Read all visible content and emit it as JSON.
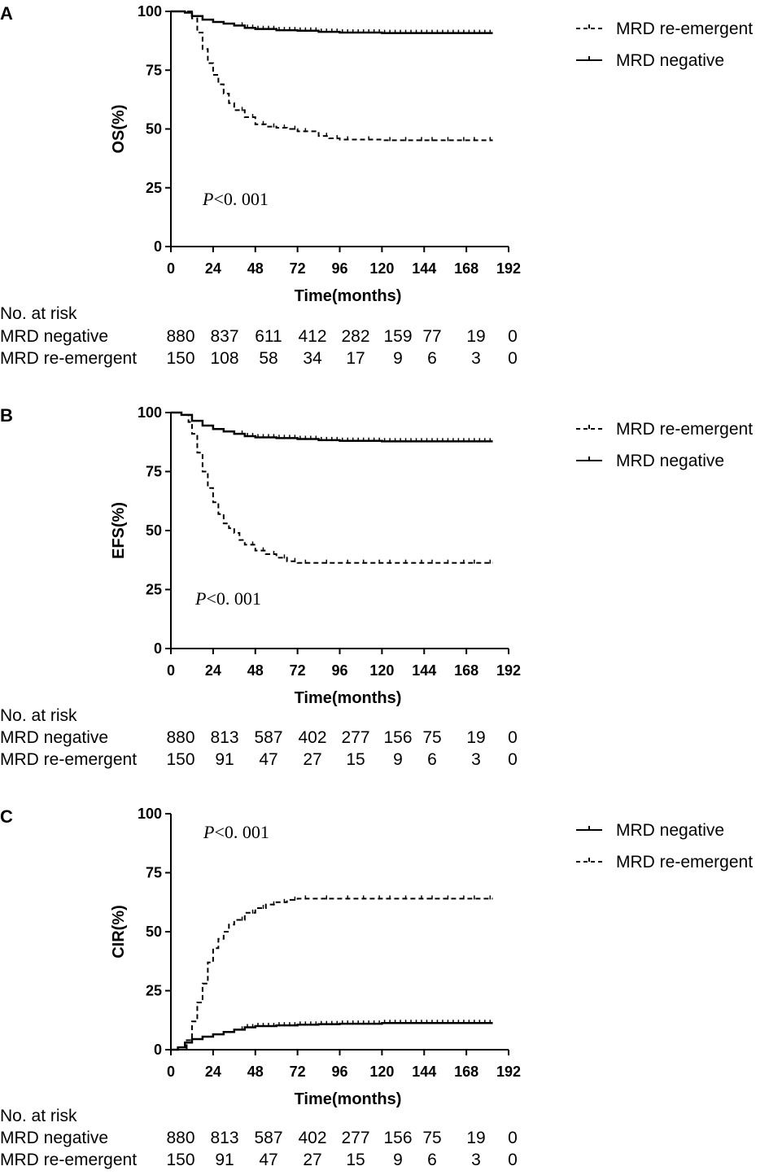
{
  "chart_data": [
    {
      "type": "line",
      "panel_label": "A",
      "ylabel": "OS(%)",
      "xlabel": "Time(months)",
      "xlim": [
        0,
        192
      ],
      "ylim": [
        0,
        100
      ],
      "x_ticks": [
        0,
        24,
        48,
        72,
        96,
        120,
        144,
        168,
        192
      ],
      "y_ticks": [
        0,
        25,
        50,
        75,
        100
      ],
      "p_value_prefix": "P",
      "p_value_text": "<0. 001",
      "legend_position": "top-right",
      "legend": [
        {
          "label": "MRD re-emergent",
          "style": "dashed"
        },
        {
          "label": "MRD negative",
          "style": "solid"
        }
      ],
      "series": [
        {
          "name": "MRD negative",
          "style": "solid",
          "x": [
            0,
            8,
            12,
            18,
            24,
            30,
            36,
            42,
            48,
            60,
            72,
            84,
            96,
            108,
            120,
            144,
            168,
            183
          ],
          "y": [
            100,
            99.5,
            98,
            96.5,
            95.5,
            94.8,
            94,
            93,
            92.5,
            92,
            91.8,
            91.3,
            91,
            91,
            90.8,
            90.8,
            90.8,
            90.8
          ]
        },
        {
          "name": "MRD re-emergent",
          "style": "dashed",
          "x": [
            0,
            8,
            12,
            15,
            18,
            21,
            24,
            27,
            30,
            33,
            36,
            42,
            48,
            54,
            60,
            66,
            72,
            84,
            90,
            96,
            108,
            120,
            144,
            168,
            183
          ],
          "y": [
            100,
            100,
            97,
            91,
            84,
            78,
            73,
            69,
            65,
            61,
            58,
            55,
            52,
            51,
            50.5,
            50,
            49,
            47,
            46,
            45.5,
            45.5,
            45.2,
            45.2,
            45.2,
            45.2
          ]
        }
      ],
      "risk_table": {
        "title": "No. at risk",
        "rows": [
          {
            "label": "MRD negative",
            "values": [
              "880",
              "837",
              "611",
              "412",
              "282",
              "159",
              "77",
              "19",
              "0"
            ]
          },
          {
            "label": "MRD re-emergent",
            "values": [
              "150",
              "108",
              "58",
              "34",
              "17",
              "9",
              "6",
              "3",
              "0"
            ]
          }
        ]
      }
    },
    {
      "type": "line",
      "panel_label": "B",
      "ylabel": "EFS(%)",
      "xlabel": "Time(months)",
      "xlim": [
        0,
        192
      ],
      "ylim": [
        0,
        100
      ],
      "x_ticks": [
        0,
        24,
        48,
        72,
        96,
        120,
        144,
        168,
        192
      ],
      "y_ticks": [
        0,
        25,
        50,
        75,
        100
      ],
      "p_value_prefix": "P",
      "p_value_text": "<0. 001",
      "legend_position": "top-right",
      "legend": [
        {
          "label": "MRD re-emergent",
          "style": "dashed"
        },
        {
          "label": "MRD negative",
          "style": "solid"
        }
      ],
      "series": [
        {
          "name": "MRD negative",
          "style": "solid",
          "x": [
            0,
            6,
            12,
            18,
            24,
            30,
            36,
            42,
            48,
            60,
            72,
            84,
            96,
            120,
            144,
            168,
            183
          ],
          "y": [
            100,
            99,
            96.5,
            94.5,
            93,
            92,
            91,
            90,
            89.5,
            89.2,
            88.8,
            88.3,
            88,
            87.8,
            87.8,
            87.8,
            87.8
          ]
        },
        {
          "name": "MRD re-emergent",
          "style": "dashed",
          "x": [
            0,
            6,
            10,
            12,
            15,
            18,
            21,
            24,
            27,
            30,
            33,
            36,
            39,
            42,
            48,
            54,
            60,
            66,
            72,
            84,
            96,
            120,
            144,
            168,
            183
          ],
          "y": [
            100,
            99,
            96,
            91,
            83,
            75,
            68,
            62,
            57,
            53,
            51,
            49,
            46,
            44,
            41.5,
            40,
            38.5,
            37,
            36.3,
            36.3,
            36.3,
            36.3,
            36.3,
            36.3,
            36.3
          ]
        }
      ],
      "risk_table": {
        "title": "No. at risk",
        "rows": [
          {
            "label": "MRD negative",
            "values": [
              "880",
              "813",
              "587",
              "402",
              "277",
              "156",
              "75",
              "19",
              "0"
            ]
          },
          {
            "label": "MRD re-emergent",
            "values": [
              "150",
              "91",
              "47",
              "27",
              "15",
              "9",
              "6",
              "3",
              "0"
            ]
          }
        ]
      }
    },
    {
      "type": "line",
      "panel_label": "C",
      "ylabel": "CIR(%)",
      "xlabel": "Time(months)",
      "xlim": [
        0,
        192
      ],
      "ylim": [
        0,
        100
      ],
      "x_ticks": [
        0,
        24,
        48,
        72,
        96,
        120,
        144,
        168,
        192
      ],
      "y_ticks": [
        0,
        25,
        50,
        75,
        100
      ],
      "p_value_prefix": "P",
      "p_value_text": "<0. 001",
      "legend_position": "top-right",
      "legend": [
        {
          "label": "MRD negative",
          "style": "solid"
        },
        {
          "label": "MRD re-emergent",
          "style": "dashed"
        }
      ],
      "series": [
        {
          "name": "MRD negative",
          "style": "solid",
          "x": [
            0,
            4,
            8,
            12,
            18,
            24,
            30,
            36,
            42,
            48,
            60,
            72,
            84,
            96,
            120,
            144,
            168,
            183
          ],
          "y": [
            0,
            1,
            3,
            4.5,
            5.5,
            6.5,
            7.5,
            8.5,
            9.5,
            10,
            10.3,
            10.6,
            10.8,
            11,
            11.3,
            11.3,
            11.3,
            11.3
          ]
        },
        {
          "name": "MRD re-emergent",
          "style": "dashed",
          "x": [
            0,
            6,
            9,
            12,
            15,
            18,
            21,
            24,
            27,
            30,
            33,
            36,
            42,
            48,
            54,
            60,
            66,
            72,
            84,
            96,
            120,
            144,
            168,
            183
          ],
          "y": [
            0,
            0,
            4,
            12,
            20,
            28,
            37,
            43,
            47,
            50,
            53,
            55,
            58,
            60,
            61.5,
            62.5,
            63.5,
            64,
            64,
            64,
            64,
            64,
            64,
            64
          ]
        }
      ],
      "risk_table": {
        "title": "No. at risk",
        "rows": [
          {
            "label": "MRD negative",
            "values": [
              "880",
              "813",
              "587",
              "402",
              "277",
              "156",
              "75",
              "19",
              "0"
            ]
          },
          {
            "label": "MRD re-emergent",
            "values": [
              "150",
              "91",
              "47",
              "27",
              "15",
              "9",
              "6",
              "3",
              "0"
            ]
          }
        ]
      }
    }
  ]
}
